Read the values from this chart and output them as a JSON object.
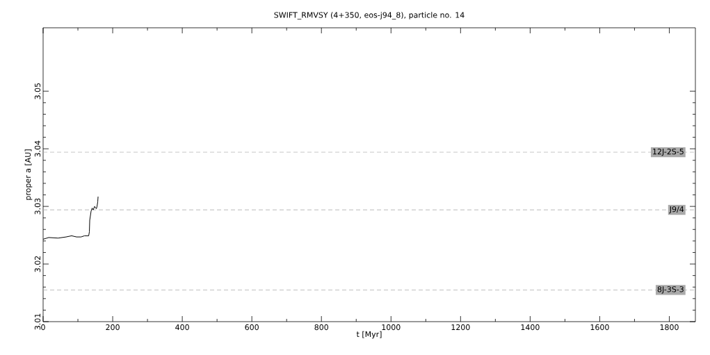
{
  "chart_data": {
    "type": "line",
    "title": "SWIFT_RMVSY (4+350, eos-j94_8), particle no. 14",
    "xlabel": "t [Myr]",
    "ylabel": "proper a [AU]",
    "xlim": [
      0,
      1875
    ],
    "ylim": [
      3.01,
      3.061
    ],
    "xticks": [
      0,
      200,
      400,
      600,
      800,
      1000,
      1200,
      1400,
      1600,
      1800
    ],
    "yticks": [
      {
        "value": 3.01,
        "label": "3.01"
      },
      {
        "value": 3.02,
        "label": "3.02"
      },
      {
        "value": 3.03,
        "label": "3.03"
      },
      {
        "value": 3.04,
        "label": "3.04"
      },
      {
        "value": 3.05,
        "label": "3.05"
      }
    ],
    "series": [
      {
        "color": "#000000",
        "x": [
          0,
          16,
          43,
          66,
          82,
          96,
          109,
          119,
          131,
          133,
          134,
          138,
          141,
          144,
          148,
          153,
          155,
          157,
          158
        ],
        "values": [
          3.0243,
          3.0246,
          3.0245,
          3.0247,
          3.0249,
          3.0247,
          3.0247,
          3.0249,
          3.0249,
          3.0256,
          3.0276,
          3.0292,
          3.0297,
          3.0294,
          3.03,
          3.0296,
          3.03,
          3.0308,
          3.0317
        ]
      }
    ],
    "ref_lines": [
      {
        "axis": "y",
        "value": 3.0394,
        "label": "12J-2S-5",
        "color": "#aaaaaa",
        "line_style": "dashed"
      },
      {
        "axis": "y",
        "value": 3.0294,
        "label": "J9/4",
        "color": "#aaaaaa",
        "line_style": "dashed"
      },
      {
        "axis": "y",
        "value": 3.0155,
        "label": "8J-3S-3",
        "color": "#aaaaaa",
        "line_style": "dashed"
      }
    ],
    "grid": false,
    "line_style": "solid",
    "marker": "none"
  }
}
